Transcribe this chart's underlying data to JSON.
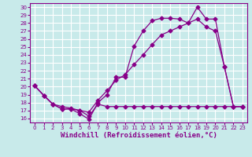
{
  "background_color": "#c8eaea",
  "grid_color": "#ffffff",
  "line_color": "#880088",
  "xlabel": "Windchill (Refroidissement éolien,°C)",
  "xlabel_fontsize": 6.5,
  "xlim": [
    -0.5,
    23.5
  ],
  "ylim": [
    15.5,
    30.5
  ],
  "xticks": [
    0,
    1,
    2,
    3,
    4,
    5,
    6,
    7,
    8,
    9,
    10,
    11,
    12,
    13,
    14,
    15,
    16,
    17,
    18,
    19,
    20,
    21,
    22,
    23
  ],
  "yticks": [
    16,
    17,
    18,
    19,
    20,
    21,
    22,
    23,
    24,
    25,
    26,
    27,
    28,
    29,
    30
  ],
  "line1_x": [
    0,
    1,
    2,
    3,
    4,
    5,
    6,
    7,
    8,
    9,
    10,
    11,
    12,
    13,
    14,
    15,
    16,
    17,
    18,
    19,
    20,
    21,
    22,
    23
  ],
  "line1_y": [
    20.1,
    18.9,
    17.8,
    17.2,
    17.2,
    16.6,
    15.9,
    18.0,
    19.0,
    21.2,
    21.2,
    25.1,
    27.0,
    28.3,
    28.6,
    28.6,
    28.5,
    28.0,
    30.0,
    28.5,
    28.5,
    22.5,
    17.5,
    17.5
  ],
  "line2_x": [
    0,
    1,
    2,
    3,
    4,
    5,
    6,
    7,
    8,
    9,
    10,
    11,
    12,
    13,
    14,
    15,
    16,
    17,
    18,
    19,
    20,
    21,
    22,
    23
  ],
  "line2_y": [
    20.1,
    18.9,
    17.8,
    17.5,
    17.3,
    17.0,
    16.8,
    18.3,
    19.5,
    20.8,
    21.5,
    22.8,
    24.0,
    25.3,
    26.5,
    27.0,
    27.5,
    28.0,
    28.5,
    27.5,
    27.0,
    22.5,
    17.5,
    17.5
  ],
  "line3_x": [
    0,
    1,
    2,
    3,
    4,
    5,
    6,
    7,
    8,
    9,
    10,
    11,
    12,
    13,
    14,
    15,
    16,
    17,
    18,
    19,
    20,
    21,
    22,
    23
  ],
  "line3_y": [
    20.1,
    18.9,
    17.8,
    17.2,
    17.2,
    17.0,
    16.3,
    17.8,
    17.5,
    17.5,
    17.5,
    17.5,
    17.5,
    17.5,
    17.5,
    17.5,
    17.5,
    17.5,
    17.5,
    17.5,
    17.5,
    17.5,
    17.5,
    17.5
  ],
  "markersize": 2.5,
  "linewidth": 0.9,
  "tick_fontsize": 5.0,
  "xlabel_fontweight": "bold"
}
